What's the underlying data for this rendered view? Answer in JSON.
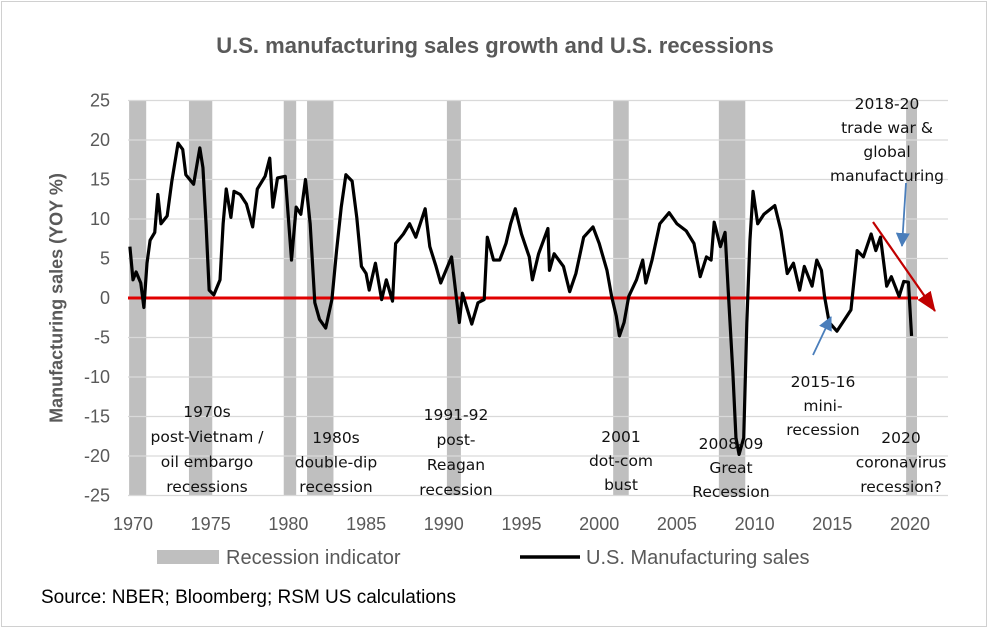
{
  "chart_data": {
    "type": "line",
    "title": "U.S. manufacturing sales growth and U.S. recessions",
    "xlabel": "",
    "ylabel": "Manufacturing sales (YOY %)",
    "xlim": [
      1970,
      2021.5
    ],
    "ylim": [
      -25,
      25
    ],
    "x_ticks": [
      "1970",
      "1975",
      "1980",
      "1985",
      "1990",
      "1995",
      "2000",
      "2005",
      "2010",
      "2015",
      "2020"
    ],
    "y_ticks": [
      "25",
      "20",
      "15",
      "10",
      "5",
      "0",
      "-5",
      "-10",
      "-15",
      "-20",
      "-25"
    ],
    "grid": "horizontal",
    "legend": {
      "placement": "bottom",
      "entries": [
        "Recession indicator",
        "U.S. Manufacturing sales"
      ]
    },
    "colors": {
      "line": "#000000",
      "recession": "#bfbfbf",
      "zero_line": "#e00000",
      "trend_arrow": "#c00000",
      "callout_arrow": "#4a7ebb",
      "grid": "#d9d9d9",
      "text": "#595959"
    },
    "recessions": [
      [
        1969.75,
        1970.85
      ],
      [
        1973.6,
        1975.1
      ],
      [
        1979.7,
        1980.5
      ],
      [
        1981.2,
        1982.9
      ],
      [
        1990.2,
        1991.1
      ],
      [
        2000.9,
        2001.9
      ],
      [
        2007.7,
        2009.4
      ],
      [
        2019.75,
        2020.45
      ]
    ],
    "series": [
      {
        "name": "U.S. Manufacturing sales",
        "x": [
          1969.8,
          1970.0,
          1970.2,
          1970.5,
          1970.7,
          1970.9,
          1971.1,
          1971.4,
          1971.6,
          1971.8,
          1972.2,
          1972.5,
          1972.9,
          1973.2,
          1973.4,
          1973.9,
          1974.3,
          1974.5,
          1974.7,
          1974.9,
          1975.2,
          1975.6,
          1975.8,
          1976.0,
          1976.3,
          1976.5,
          1976.9,
          1977.3,
          1977.7,
          1978.0,
          1978.5,
          1978.8,
          1979.0,
          1979.3,
          1979.8,
          1980.2,
          1980.5,
          1980.8,
          1981.1,
          1981.4,
          1981.7,
          1982.0,
          1982.4,
          1982.8,
          1983.1,
          1983.4,
          1983.7,
          1984.1,
          1984.4,
          1984.7,
          1985.0,
          1985.2,
          1985.6,
          1986.0,
          1986.3,
          1986.7,
          1986.9,
          1987.4,
          1987.8,
          1988.2,
          1988.8,
          1989.1,
          1989.5,
          1989.8,
          1990.5,
          1990.8,
          1991.0,
          1991.2,
          1991.8,
          1992.2,
          1992.6,
          1992.8,
          1993.2,
          1993.6,
          1994.0,
          1994.3,
          1994.6,
          1995.0,
          1995.5,
          1995.7,
          1996.1,
          1996.7,
          1996.8,
          1997.1,
          1997.7,
          1998.1,
          1998.5,
          1999.0,
          1999.6,
          2000.0,
          2000.5,
          2000.8,
          2001.1,
          2001.3,
          2001.6,
          2001.9,
          2002.4,
          2002.8,
          2003.0,
          2003.4,
          2003.9,
          2004.5,
          2005.0,
          2005.6,
          2006.1,
          2006.5,
          2006.9,
          2007.2,
          2007.4,
          2007.8,
          2008.1,
          2008.3,
          2008.6,
          2008.8,
          2009.0,
          2009.3,
          2009.5,
          2009.7,
          2009.9,
          2010.2,
          2010.6,
          2011.3,
          2011.7,
          2012.1,
          2012.5,
          2012.9,
          2013.2,
          2013.7,
          2014.0,
          2014.3,
          2014.5,
          2014.8,
          2015.3,
          2015.8,
          2016.2,
          2016.6,
          2017.0,
          2017.5,
          2017.8,
          2018.1,
          2018.5,
          2018.8,
          2019.3,
          2019.6,
          2019.9,
          2020.1
        ],
        "values": [
          6.5,
          2.3,
          3.3,
          1.9,
          -1.2,
          4.4,
          7.3,
          8.3,
          13.1,
          9.4,
          10.4,
          14.8,
          19.6,
          18.8,
          15.6,
          14.4,
          19.0,
          16.5,
          9.4,
          1.0,
          0.4,
          2.3,
          9.4,
          13.8,
          10.2,
          13.5,
          13.1,
          11.9,
          9.0,
          13.8,
          15.4,
          17.7,
          11.5,
          15.2,
          15.4,
          4.8,
          11.5,
          10.6,
          15.0,
          9.4,
          -0.6,
          -2.7,
          -3.8,
          -0.2,
          6.0,
          11.5,
          15.6,
          14.8,
          10.2,
          4.0,
          3.1,
          1.0,
          4.4,
          -0.2,
          2.3,
          -0.4,
          6.9,
          8.1,
          9.4,
          7.7,
          11.3,
          6.5,
          4.0,
          1.9,
          5.2,
          0.2,
          -3.1,
          0.6,
          -3.3,
          -0.6,
          -0.2,
          7.7,
          4.8,
          4.8,
          6.9,
          9.4,
          11.3,
          8.1,
          5.2,
          2.3,
          5.6,
          8.8,
          3.5,
          5.6,
          4.0,
          0.8,
          3.1,
          7.7,
          9.0,
          6.9,
          3.5,
          0.2,
          -2.3,
          -4.8,
          -3.1,
          0.2,
          2.3,
          4.8,
          1.9,
          4.8,
          9.4,
          10.8,
          9.4,
          8.5,
          6.9,
          2.7,
          5.2,
          4.8,
          9.6,
          6.5,
          8.3,
          1.0,
          -9.4,
          -17.7,
          -19.8,
          -17.7,
          -3.1,
          7.3,
          13.5,
          9.4,
          10.6,
          11.7,
          8.5,
          3.1,
          4.4,
          1.0,
          4.0,
          1.5,
          4.8,
          3.5,
          0.2,
          -3.1,
          -4.2,
          -2.7,
          -1.5,
          6.0,
          5.2,
          8.1,
          6.0,
          7.7,
          1.5,
          2.7,
          0.2,
          2.1,
          2.0,
          -4.8
        ]
      }
    ],
    "annotations": [
      {
        "lines": [
          "1970s",
          "post-Vietnam /",
          "oil embargo",
          "recessions"
        ]
      },
      {
        "lines": [
          "1980s",
          "double-dip",
          "recession"
        ]
      },
      {
        "lines": [
          "1991-92",
          "post-",
          "Reagan",
          "recession"
        ]
      },
      {
        "lines": [
          "2001",
          "dot-com",
          "bust"
        ]
      },
      {
        "lines": [
          "2008-09",
          "Great",
          "Recession"
        ]
      },
      {
        "lines": [
          "2015-16",
          "mini-",
          "recession"
        ]
      },
      {
        "lines": [
          "2020",
          "coronavirus",
          "recession?"
        ]
      },
      {
        "lines": [
          "2018-20",
          "trade war &",
          "global",
          "manufacturing"
        ]
      }
    ]
  },
  "source": "Source: NBER; Bloomberg; RSM US calculations"
}
